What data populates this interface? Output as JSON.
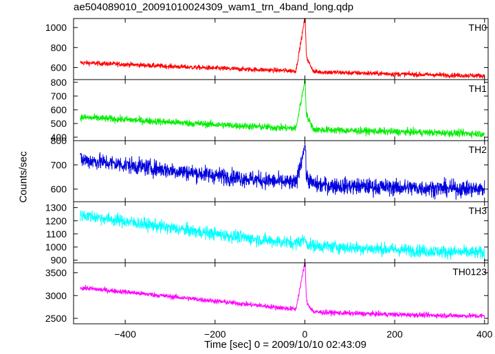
{
  "chart_data": {
    "type": "line",
    "title": "ae504089010_20091010024309_wam1_trn_4band_long.qdp",
    "xlabel": "Time [sec] 0 = 2009/10/10 02:43:09",
    "ylabel": "Counts/sec",
    "xlim": [
      -515,
      408
    ],
    "x_ticks": [
      -400,
      -200,
      0,
      200,
      400
    ],
    "x_tick_labels": [
      "−400",
      "−200",
      "0",
      "200",
      "400"
    ],
    "panels": [
      {
        "name": "TH0",
        "color": "#ff0000",
        "ylim": [
          480,
          1090
        ],
        "ticks": [
          600,
          800,
          1000
        ],
        "baseline_start": 650,
        "baseline_end": 518,
        "noise": 24,
        "burst_peak": 1090,
        "series": [
          {
            "x": [
              -500,
              -400,
              -300,
              -200,
              -100,
              -20,
              0,
              3,
              20,
              100,
              200,
              300,
              400
            ],
            "y": [
              648,
              632,
              612,
              594,
              578,
              566,
              1090,
              700,
              558,
              548,
              536,
              526,
              518
            ]
          }
        ]
      },
      {
        "name": "TH1",
        "color": "#00ee00",
        "ylim": [
          375,
          820
        ],
        "ticks": [
          400,
          500,
          600,
          700,
          800
        ],
        "baseline_start": 545,
        "baseline_end": 425,
        "noise": 26,
        "burst_peak": 810,
        "series": [
          {
            "x": [
              -500,
              -400,
              -300,
              -200,
              -100,
              -20,
              0,
              3,
              20,
              100,
              200,
              300,
              400
            ],
            "y": [
              545,
              528,
              510,
              492,
              476,
              464,
              810,
              560,
              456,
              448,
              440,
              432,
              425
            ]
          }
        ]
      },
      {
        "name": "TH2",
        "color": "#0000dd",
        "ylim": [
          548,
          800
        ],
        "ticks": [
          600,
          700,
          800
        ],
        "baseline_start": 722,
        "baseline_end": 600,
        "noise": 34,
        "burst_peak": 780,
        "series": [
          {
            "x": [
              -500,
              -400,
              -300,
              -200,
              -100,
              -20,
              0,
              3,
              20,
              100,
              200,
              300,
              400
            ],
            "y": [
              722,
              700,
              678,
              657,
              638,
              624,
              780,
              650,
              618,
              612,
              607,
              603,
              600
            ]
          }
        ]
      },
      {
        "name": "TH3",
        "color": "#00ffff",
        "ylim": [
          880,
          1345
        ],
        "ticks": [
          900,
          1000,
          1100,
          1200,
          1300
        ],
        "baseline_start": 1245,
        "baseline_end": 955,
        "noise": 48,
        "burst_peak": 1060,
        "series": [
          {
            "x": [
              -500,
              -400,
              -300,
              -200,
              -100,
              -20,
              0,
              3,
              20,
              100,
              200,
              300,
              400
            ],
            "y": [
              1245,
              1195,
              1145,
              1100,
              1055,
              1030,
              1060,
              1025,
              1010,
              995,
              980,
              965,
              955
            ]
          }
        ]
      },
      {
        "name": "TH0123",
        "color": "#ff00ff",
        "ylim": [
          2380,
          3720
        ],
        "ticks": [
          2500,
          3000,
          3500
        ],
        "baseline_start": 3170,
        "baseline_end": 2550,
        "noise": 55,
        "burst_peak": 3720,
        "series": [
          {
            "x": [
              -500,
              -400,
              -300,
              -200,
              -100,
              -20,
              0,
              3,
              20,
              100,
              200,
              300,
              400
            ],
            "y": [
              3170,
              3080,
              2980,
              2880,
              2780,
              2700,
              3720,
              2850,
              2640,
              2610,
              2585,
              2565,
              2550
            ]
          }
        ]
      }
    ]
  }
}
